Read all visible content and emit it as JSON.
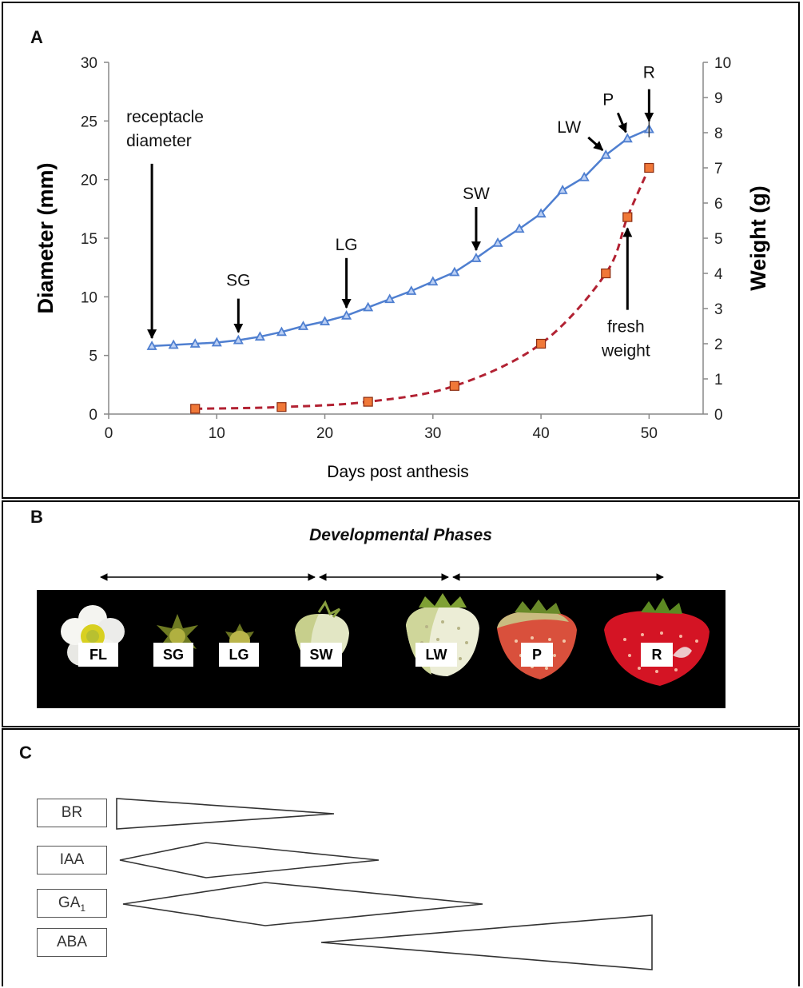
{
  "panels": {
    "a": "A",
    "b": "B",
    "c": "C"
  },
  "chart_data": {
    "type": "line",
    "xlabel": "Days post anthesis",
    "ylabel_left": "Diameter (mm)",
    "ylabel_right": "Weight (g)",
    "xlim": [
      0,
      55
    ],
    "ylim_left": [
      0,
      30
    ],
    "ylim_right": [
      0,
      10
    ],
    "x_ticks": [
      0,
      10,
      20,
      30,
      40,
      50
    ],
    "y_ticks_left": [
      0,
      5,
      10,
      15,
      20,
      25,
      30
    ],
    "y_ticks_right": [
      0,
      1,
      2,
      3,
      4,
      5,
      6,
      7,
      8,
      9,
      10
    ],
    "grid": false,
    "series": [
      {
        "axis": "left",
        "color": "#4f7fd0",
        "marker": "triangle",
        "line": "solid",
        "x": [
          4,
          6,
          8,
          10,
          12,
          14,
          16,
          18,
          20,
          22,
          24,
          26,
          28,
          30,
          32,
          34,
          36,
          38,
          40,
          42,
          44,
          46,
          48,
          50
        ],
        "y": [
          5.8,
          5.9,
          6.0,
          6.1,
          6.3,
          6.6,
          7.0,
          7.5,
          7.9,
          8.4,
          9.1,
          9.8,
          10.5,
          11.3,
          12.1,
          13.3,
          14.6,
          15.8,
          17.1,
          19.1,
          20.2,
          22.1,
          23.5,
          24.3
        ]
      },
      {
        "axis": "right",
        "color": "#b22233",
        "marker": "square",
        "marker_color": "#f07838",
        "line": "dashed",
        "x": [
          8,
          16,
          24,
          32,
          40,
          46,
          48,
          50
        ],
        "y": [
          0.15,
          0.2,
          0.35,
          0.8,
          2.0,
          4.0,
          5.6,
          7.0
        ]
      }
    ],
    "annotations": [
      {
        "label": "receptacle",
        "label2": "diameter",
        "x": 4,
        "y": 5.8
      },
      {
        "label": "SG",
        "x": 12,
        "y": 6.3
      },
      {
        "label": "LG",
        "x": 22,
        "y": 8.4
      },
      {
        "label": "SW",
        "x": 34,
        "y": 13.3
      },
      {
        "label": "LW",
        "x": 46,
        "y": 22.1
      },
      {
        "label": "P",
        "x": 48,
        "y": 23.5
      },
      {
        "label": "R",
        "x": 50,
        "y": 24.3
      },
      {
        "label": "fresh",
        "label2": "weight",
        "x": 48,
        "y": 5.6
      }
    ]
  },
  "developmental_phases": {
    "title": "Developmental Phases",
    "stages": [
      "FL",
      "SG",
      "LG",
      "SW",
      "LW",
      "P",
      "R"
    ]
  },
  "hormones": {
    "labels": [
      "BR",
      "IAA",
      "GA",
      "ABA"
    ],
    "ga_subscript": "1"
  }
}
